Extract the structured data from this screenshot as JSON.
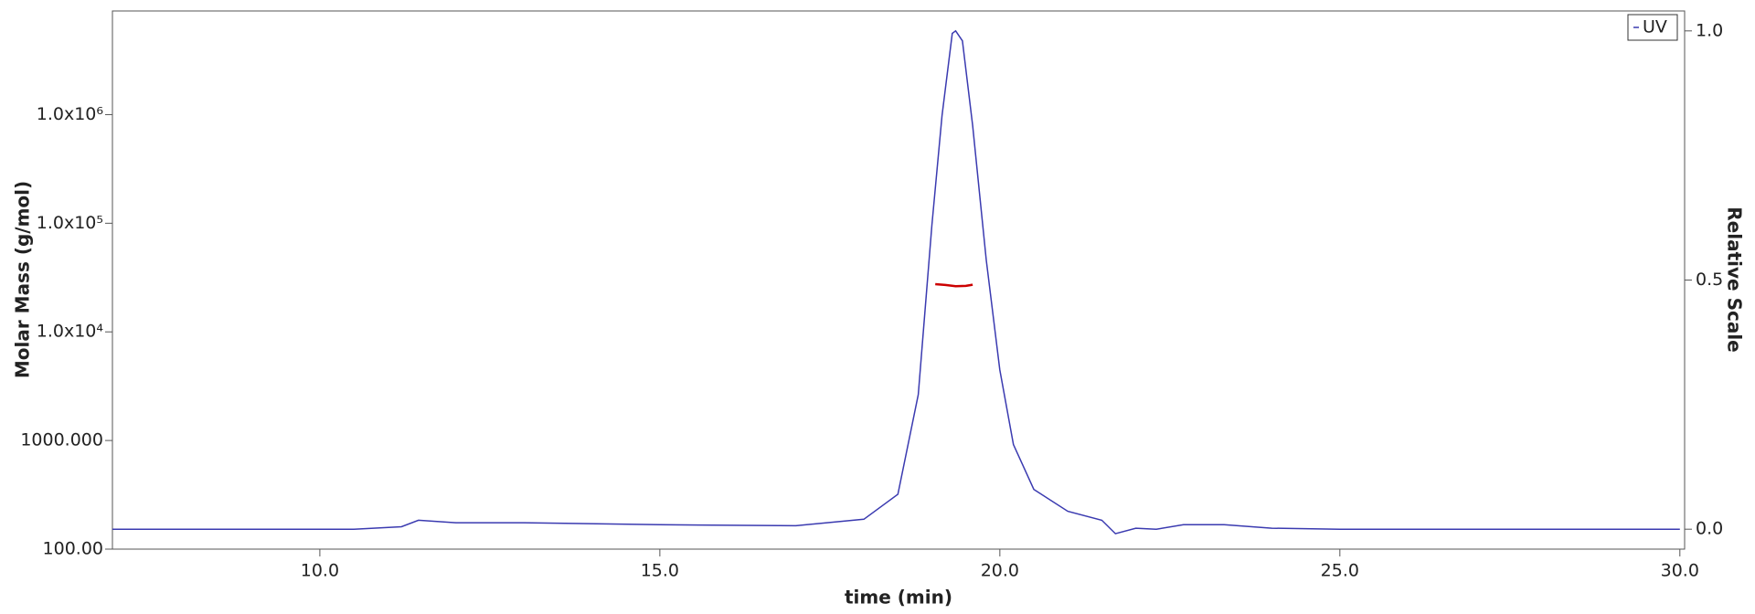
{
  "chart_data": {
    "type": "line",
    "xlabel": "time (min)",
    "ylabel": "Molar Mass (g/mol)",
    "y2label": "Relative Scale",
    "xlim": [
      6.95,
      30.07
    ],
    "xticks": [
      {
        "value": 10,
        "label": "10.0"
      },
      {
        "value": 15,
        "label": "15.0"
      },
      {
        "value": 20,
        "label": "20.0"
      },
      {
        "value": 25,
        "label": "25.0"
      },
      {
        "value": 30,
        "label": "30.0"
      }
    ],
    "ylim": [
      100,
      9000000
    ],
    "ylog": true,
    "yticks": [
      {
        "value": 100,
        "label": "100.00"
      },
      {
        "value": 1000,
        "label": "1000.000"
      },
      {
        "value": 10000,
        "label": "1.0x10⁴"
      },
      {
        "value": 100000,
        "label": "1.0x10⁵"
      },
      {
        "value": 1000000,
        "label": "1.0x10⁶"
      }
    ],
    "y2lim": [
      -0.04,
      1.04
    ],
    "y2ticks": [
      {
        "value": 0,
        "label": "0.0"
      },
      {
        "value": 0.5,
        "label": "0.5"
      },
      {
        "value": 1,
        "label": "1.0"
      }
    ],
    "legend": "upper right",
    "series": [
      {
        "name": "UV",
        "color": "#3a3ab0",
        "axis": "y2",
        "x": [
          6.95,
          10.5,
          11.2,
          11.45,
          12.0,
          13.0,
          15.0,
          17.0,
          18.0,
          18.5,
          18.8,
          19.0,
          19.15,
          19.3,
          19.35,
          19.45,
          19.6,
          19.8,
          20.0,
          20.2,
          20.5,
          21.0,
          21.5,
          21.7,
          22.0,
          22.3,
          22.7,
          23.3,
          24.0,
          25.0,
          30.0
        ],
        "values": [
          0.0,
          0.0,
          0.005,
          0.018,
          0.013,
          0.013,
          0.009,
          0.007,
          0.02,
          0.07,
          0.27,
          0.61,
          0.83,
          0.995,
          1.0,
          0.98,
          0.81,
          0.54,
          0.32,
          0.17,
          0.08,
          0.036,
          0.018,
          -0.009,
          0.002,
          0.0,
          0.009,
          0.009,
          0.002,
          0.0,
          0.0
        ]
      },
      {
        "color": "#cc0000",
        "x": [
          19.05,
          19.2,
          19.35,
          19.5,
          19.6
        ],
        "values": [
          27500,
          27000,
          26300,
          26500,
          27200
        ]
      }
    ]
  }
}
